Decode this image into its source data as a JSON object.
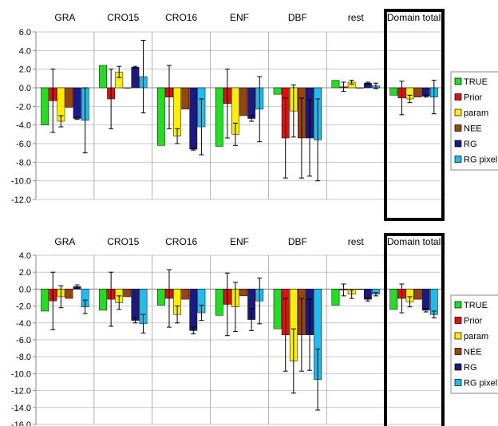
{
  "series_colors": {
    "TRUE": "#22dd22",
    "Prior": "#dd1111",
    "param": "#ffee00",
    "NEE": "#994411",
    "RG": "#1a1a80",
    "RG pixel": "#22bbee"
  },
  "highlight_color": "#000000",
  "chart_data": [
    {
      "type": "bar",
      "categories": [
        "GRA",
        "CRO15",
        "CRO16",
        "ENF",
        "DBF",
        "rest",
        "Domain total"
      ],
      "ylim": [
        -12,
        6
      ],
      "yticks": [
        "6.0",
        "4.0",
        "2.0",
        "0.0",
        "-2.0",
        "-4.0",
        "-6.0",
        "-8.0",
        "-10.0",
        "-12.0"
      ],
      "grid": true,
      "legend": "right",
      "highlighted_category": "Domain total",
      "series": [
        {
          "name": "TRUE",
          "values": [
            -4.0,
            2.4,
            -6.2,
            -6.3,
            -0.7,
            0.8,
            -0.8
          ],
          "errors": [
            null,
            null,
            null,
            null,
            null,
            null,
            null
          ]
        },
        {
          "name": "Prior",
          "values": [
            -1.4,
            -1.2,
            -1.0,
            -1.7,
            -5.4,
            0.1,
            -1.1
          ],
          "errors": [
            3.4,
            3.2,
            3.4,
            3.7,
            4.3,
            0.5,
            1.8
          ]
        },
        {
          "name": "param",
          "values": [
            -3.6,
            1.7,
            -5.2,
            -5.0,
            -2.5,
            0.6,
            -1.2
          ],
          "errors": [
            0.6,
            0.6,
            0.8,
            1.2,
            2.8,
            0.2,
            0.4
          ]
        },
        {
          "name": "NEE",
          "values": [
            -2.1,
            0.0,
            -2.3,
            -3.0,
            -5.4,
            0.0,
            -1.0
          ],
          "errors": [
            null,
            null,
            null,
            null,
            4.3,
            null,
            null
          ]
        },
        {
          "name": "RG",
          "values": [
            -3.3,
            2.2,
            -6.6,
            -3.3,
            -5.4,
            0.5,
            -0.9
          ],
          "errors": [
            0.1,
            0.1,
            0.1,
            0.3,
            4.1,
            0.1,
            0.1
          ]
        },
        {
          "name": "RG pixel",
          "values": [
            -3.5,
            1.2,
            -4.2,
            -2.3,
            -5.6,
            0.2,
            -1.0
          ],
          "errors": [
            3.5,
            3.9,
            3.0,
            3.5,
            4.4,
            0.3,
            1.8
          ]
        }
      ]
    },
    {
      "type": "bar",
      "categories": [
        "GRA",
        "CRO15",
        "CRO16",
        "ENF",
        "DBF",
        "rest",
        "Domain total"
      ],
      "ylim": [
        -16,
        4
      ],
      "yticks": [
        "4.0",
        "2.0",
        "0.0",
        "-2.0",
        "-4.0",
        "-6.0",
        "-8.0",
        "-10.0",
        "-12.0",
        "-14.0",
        "-16.0"
      ],
      "grid": true,
      "legend": "right",
      "highlighted_category": "Domain total",
      "series": [
        {
          "name": "TRUE",
          "values": [
            -2.6,
            -2.5,
            -1.9,
            -3.1,
            -4.7,
            -1.9,
            -2.4
          ],
          "errors": [
            null,
            null,
            null,
            null,
            null,
            null,
            null
          ]
        },
        {
          "name": "Prior",
          "values": [
            -1.4,
            -1.2,
            -1.1,
            -1.8,
            -5.4,
            -0.1,
            -1.1
          ],
          "errors": [
            3.4,
            3.2,
            3.4,
            3.7,
            4.3,
            0.7,
            1.7
          ]
        },
        {
          "name": "param",
          "values": [
            -0.9,
            -1.6,
            -3.0,
            -2.1,
            -8.5,
            -0.6,
            -1.5
          ],
          "errors": [
            1.3,
            0.8,
            1.0,
            2.9,
            3.8,
            0.5,
            0.6
          ]
        },
        {
          "name": "NEE",
          "values": [
            -1.1,
            -0.9,
            -1.2,
            -0.8,
            -5.4,
            0.0,
            -1.2
          ],
          "errors": [
            null,
            null,
            null,
            null,
            4.3,
            null,
            null
          ]
        },
        {
          "name": "RG",
          "values": [
            0.3,
            -3.7,
            -4.9,
            -3.6,
            -5.4,
            -1.2,
            -2.5
          ],
          "errors": [
            0.2,
            0.3,
            0.4,
            1.3,
            4.2,
            0.2,
            0.2
          ]
        },
        {
          "name": "RG pixel",
          "values": [
            -2.1,
            -4.1,
            -2.8,
            -1.4,
            -10.7,
            -0.6,
            -3.0
          ],
          "errors": [
            0.8,
            1.1,
            0.9,
            2.7,
            3.6,
            0.2,
            0.4
          ]
        }
      ]
    }
  ]
}
